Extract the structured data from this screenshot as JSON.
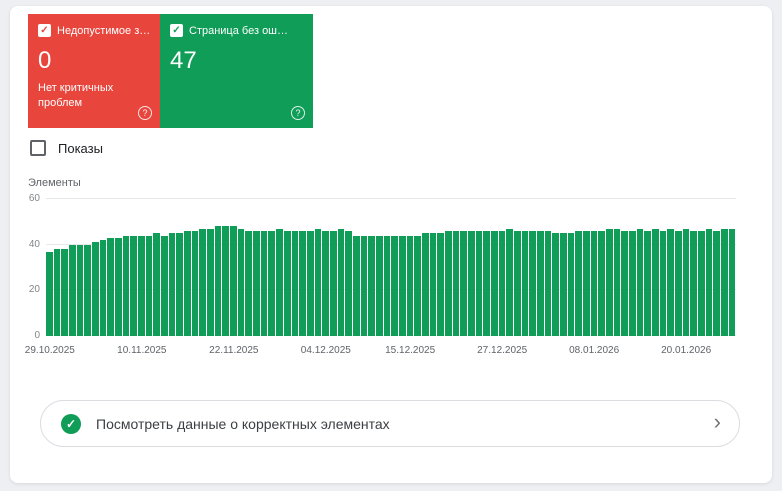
{
  "status_cards": {
    "error": {
      "label": "Недопустимое з…",
      "value": "0",
      "subtitle": "Нет критичных проблем",
      "color": "#e8453c",
      "checkbox_checked": true
    },
    "valid": {
      "label": "Страница без ош…",
      "value": "47",
      "color": "#0f9d58",
      "checkbox_checked": true
    }
  },
  "controls": {
    "impressions_label": "Показы",
    "impressions_checked": false
  },
  "chart_data": {
    "type": "bar",
    "title": "",
    "xlabel": "",
    "ylabel": "Элементы",
    "ylim": [
      0,
      60
    ],
    "yticks": [
      0,
      20,
      40,
      60
    ],
    "grid": true,
    "legend": false,
    "bar_color": "#0f9d58",
    "x_tick_labels": [
      "29.10.2025",
      "10.11.2025",
      "22.11.2025",
      "04.12.2025",
      "15.12.2025",
      "27.12.2025",
      "08.01.2026",
      "20.01.2026"
    ],
    "x_tick_indices": [
      0,
      12,
      24,
      36,
      47,
      59,
      71,
      83
    ],
    "values": [
      37,
      38,
      38,
      40,
      40,
      40,
      41,
      42,
      43,
      43,
      44,
      44,
      44,
      44,
      45,
      44,
      45,
      45,
      46,
      46,
      47,
      47,
      48,
      48,
      48,
      47,
      46,
      46,
      46,
      46,
      47,
      46,
      46,
      46,
      46,
      47,
      46,
      46,
      47,
      46,
      44,
      44,
      44,
      44,
      44,
      44,
      44,
      44,
      44,
      45,
      45,
      45,
      46,
      46,
      46,
      46,
      46,
      46,
      46,
      46,
      47,
      46,
      46,
      46,
      46,
      46,
      45,
      45,
      45,
      46,
      46,
      46,
      46,
      47,
      47,
      46,
      46,
      47,
      46,
      47,
      46,
      47,
      46,
      47,
      46,
      46,
      47,
      46,
      47,
      47
    ]
  },
  "footer": {
    "label": "Посмотреть данные о корректных элементах"
  },
  "icons": {
    "check": "✓",
    "chevron_right": "›",
    "help": "?"
  }
}
